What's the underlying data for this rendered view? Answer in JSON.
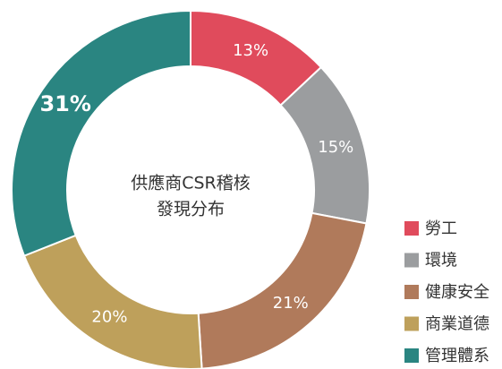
{
  "chart_data": {
    "type": "donut",
    "title_lines": [
      "供應商CSR稽核",
      "發現分布"
    ],
    "categories": [
      "勞工",
      "環境",
      "健康安全",
      "商業道德",
      "管理體系"
    ],
    "values": [
      13,
      15,
      21,
      20,
      31
    ],
    "value_labels": [
      "13%",
      "15%",
      "21%",
      "20%",
      "31%"
    ],
    "colors": [
      "#e04b5c",
      "#9b9d9f",
      "#b07a5b",
      "#bea05b",
      "#2a8581"
    ],
    "legend": "bottom-right"
  }
}
